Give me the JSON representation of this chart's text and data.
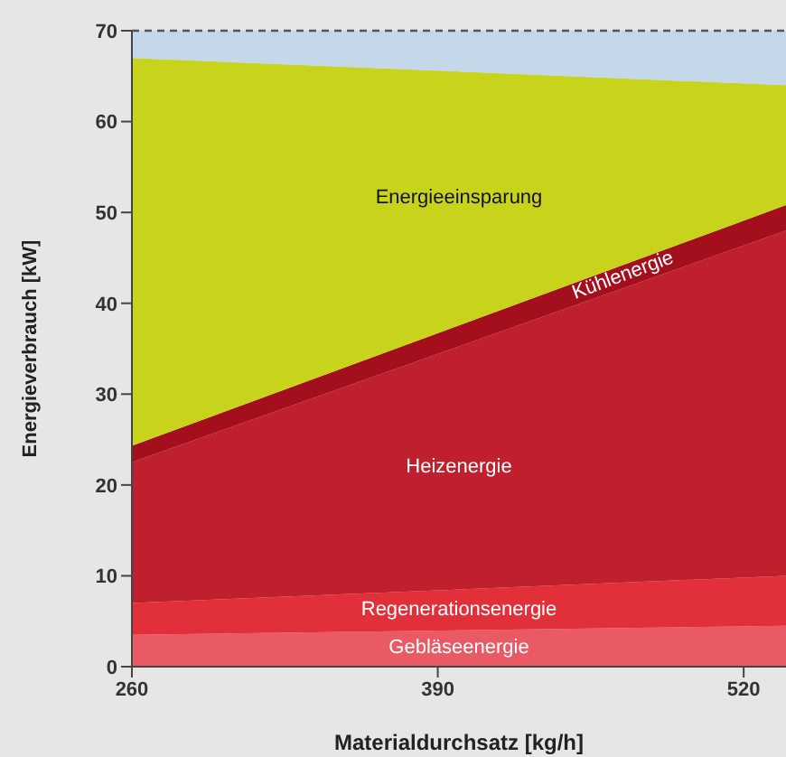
{
  "chart_data": {
    "type": "area",
    "stacked": true,
    "xlabel": "Materialdurchsatz [kg/h]",
    "ylabel": "Energieverbrauch [kW]",
    "x": [
      260,
      538
    ],
    "xlim": [
      260,
      538
    ],
    "xticks": [
      260,
      390,
      520
    ],
    "ylim": [
      0,
      70
    ],
    "yticks": [
      0,
      10,
      20,
      30,
      40,
      50,
      60,
      70
    ],
    "series": [
      {
        "name": "Gebläseenergie",
        "color": "#ea5a64",
        "values": [
          3.5,
          4.5
        ]
      },
      {
        "name": "Regenerationsenergie",
        "color": "#e2303b",
        "values": [
          3.5,
          5.5
        ]
      },
      {
        "name": "Heizenergie",
        "color": "#c0202e",
        "values": [
          15.5,
          38
        ]
      },
      {
        "name": "Kühlenergie",
        "color": "#a30f1c",
        "values": [
          1.8,
          2.8
        ]
      },
      {
        "name": "Energieeinsparung",
        "color": "#c8d31c",
        "values": [
          42.7,
          13.2
        ]
      },
      {
        "color": "#c5d8ea",
        "values": [
          3,
          6
        ]
      }
    ],
    "ref_lines": [
      {
        "axis": "y",
        "value": 70,
        "line_style": "dashed",
        "color": "#555555"
      }
    ],
    "grid": false,
    "legend": false
  }
}
